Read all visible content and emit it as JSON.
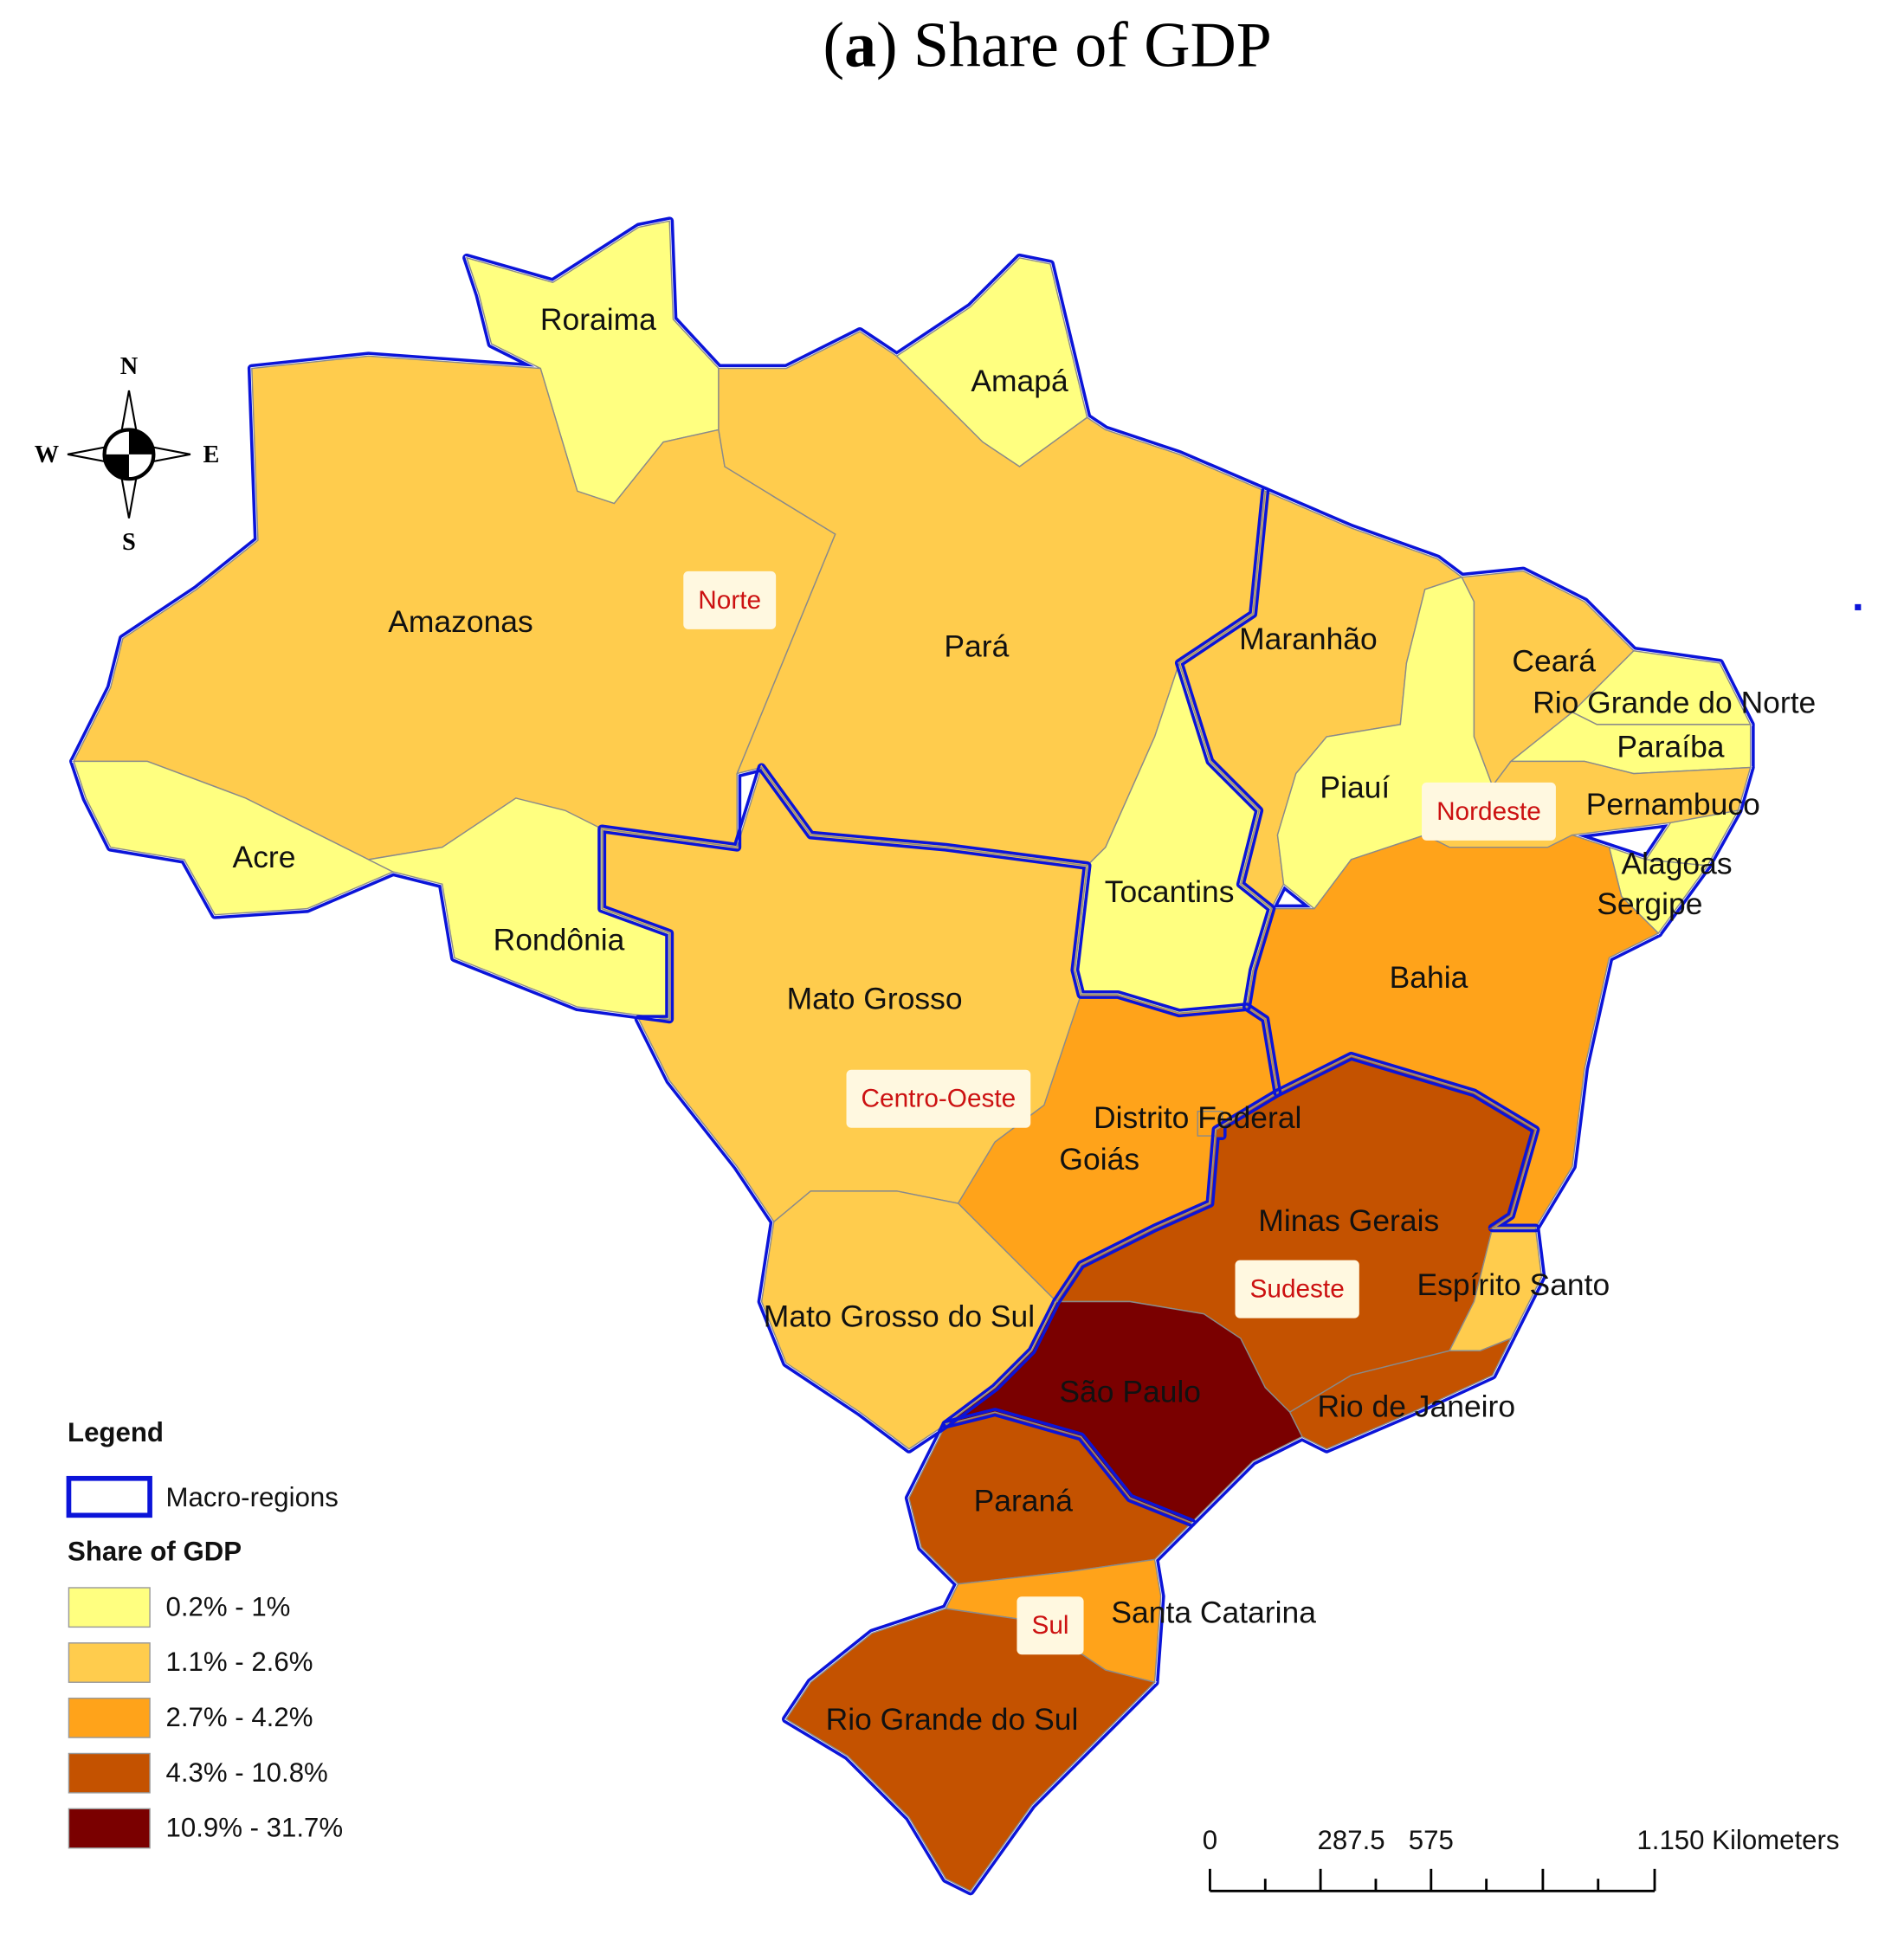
{
  "title": {
    "open": "(",
    "panel": "a",
    "rest": ") Share of GDP"
  },
  "states": [
    {
      "name": "Roraima",
      "color": "#ffff80"
    },
    {
      "name": "Amapá",
      "color": "#ffff80"
    },
    {
      "name": "Amazonas",
      "color": "#ffcc4d"
    },
    {
      "name": "Acre",
      "color": "#ffff80"
    },
    {
      "name": "Rondônia",
      "color": "#ffff80"
    },
    {
      "name": "Pará",
      "color": "#ffcc4d"
    },
    {
      "name": "Tocantins",
      "color": "#ffff80"
    },
    {
      "name": "Maranhão",
      "color": "#ffcc4d"
    },
    {
      "name": "Piauí",
      "color": "#ffff80"
    },
    {
      "name": "Ceará",
      "color": "#ffcc4d"
    },
    {
      "name": "Rio Grande do Norte",
      "color": "#ffff80"
    },
    {
      "name": "Paraíba",
      "color": "#ffff80"
    },
    {
      "name": "Pernambuco",
      "color": "#ffcc4d"
    },
    {
      "name": "Alagoas",
      "color": "#ffff80"
    },
    {
      "name": "Sergipe",
      "color": "#ffff80"
    },
    {
      "name": "Bahia",
      "color": "#ffa31a"
    },
    {
      "name": "Mato Grosso",
      "color": "#ffcc4d"
    },
    {
      "name": "Goiás",
      "color": "#ffa31a"
    },
    {
      "name": "Distrito Federal",
      "color": "#ffa31a"
    },
    {
      "name": "Mato Grosso do Sul",
      "color": "#ffcc4d"
    },
    {
      "name": "Minas Gerais",
      "color": "#c45200"
    },
    {
      "name": "Espírito Santo",
      "color": "#ffcc4d"
    },
    {
      "name": "Rio de Janeiro",
      "color": "#c45200"
    },
    {
      "name": "São Paulo",
      "color": "#7a0000"
    },
    {
      "name": "Paraná",
      "color": "#c45200"
    },
    {
      "name": "Santa Catarina",
      "color": "#ffa31a"
    },
    {
      "name": "Rio Grande do Sul",
      "color": "#c45200"
    }
  ],
  "regions": [
    "Norte",
    "Nordeste",
    "Centro-Oeste",
    "Sudeste",
    "Sul"
  ],
  "compass": {
    "n": "N",
    "e": "E",
    "s": "S",
    "w": "W"
  },
  "legend": {
    "title": "Legend",
    "boundary": "Macro-regions",
    "boundary_color": "#0b14d9",
    "scale_title": "Share of GDP",
    "classes": [
      {
        "label": "0.2% - 1%",
        "color": "#ffff80"
      },
      {
        "label": "1.1% - 2.6%",
        "color": "#ffcc4d"
      },
      {
        "label": "2.7% - 4.2%",
        "color": "#ffa31a"
      },
      {
        "label": "4.3% - 10.8%",
        "color": "#c45200"
      },
      {
        "label": "10.9% - 31.7%",
        "color": "#7a0000"
      }
    ]
  },
  "scale_bar": {
    "labels": [
      "0",
      "287.5",
      "575",
      "1.150 Kilometers"
    ]
  }
}
